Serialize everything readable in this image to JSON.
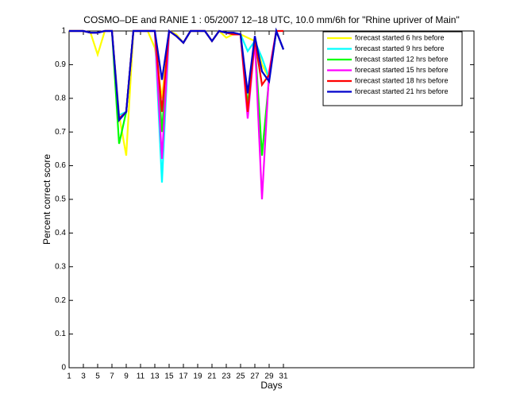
{
  "chart_data": {
    "type": "line",
    "title": "COSMO–DE and RANIE 1 : 05/2007 12–18 UTC, 10.0 mm/6h for \"Rhine upriver of Main\"",
    "xlabel": "Days",
    "ylabel": "Percent correct score",
    "x": [
      1,
      2,
      3,
      4,
      5,
      6,
      7,
      8,
      9,
      10,
      11,
      12,
      13,
      14,
      15,
      16,
      17,
      18,
      19,
      20,
      21,
      22,
      23,
      24,
      25,
      26,
      27,
      28,
      29,
      30,
      31
    ],
    "series": [
      {
        "name": "forecast started 6 hrs before",
        "color": "#ffff00",
        "values": [
          1,
          1,
          1,
          0.995,
          0.93,
          1,
          1,
          0.75,
          0.63,
          1,
          1,
          1,
          0.95,
          0.8,
          1,
          0.99,
          0.965,
          1,
          1,
          1,
          0.97,
          1,
          0.98,
          0.99,
          0.99,
          0.98,
          0.97,
          0.9,
          0.86,
          1,
          0.945
        ]
      },
      {
        "name": "forecast started 9 hrs before",
        "color": "#00ffff",
        "values": [
          1,
          1,
          1,
          0.995,
          0.995,
          1,
          1,
          0.75,
          0.76,
          1,
          1,
          1,
          1,
          0.55,
          1,
          0.985,
          0.965,
          1,
          1,
          1,
          0.97,
          1,
          0.995,
          0.99,
          0.99,
          0.94,
          0.97,
          0.92,
          0.86,
          1,
          0.945
        ]
      },
      {
        "name": "forecast started 12 hrs before",
        "color": "#00ff00",
        "values": [
          1,
          1,
          1,
          0.995,
          0.995,
          1,
          1,
          0.665,
          0.76,
          1,
          1,
          1,
          1,
          0.7,
          1,
          0.985,
          0.965,
          1,
          1,
          1,
          0.97,
          1,
          0.995,
          0.99,
          0.99,
          0.78,
          0.97,
          0.63,
          0.86,
          1,
          0.945
        ]
      },
      {
        "name": "forecast started 15 hrs before",
        "color": "#ff00ff",
        "values": [
          1,
          1,
          1,
          0.995,
          0.995,
          1,
          1,
          0.74,
          0.76,
          1,
          1,
          1,
          1,
          0.62,
          1,
          0.985,
          0.965,
          1,
          1,
          1,
          0.97,
          1,
          0.995,
          0.99,
          0.99,
          0.74,
          0.97,
          0.5,
          0.88,
          1,
          0.945
        ]
      },
      {
        "name": "forecast started 18 hrs before",
        "color": "#ff0000",
        "values": [
          1,
          1,
          1,
          0.995,
          0.995,
          1,
          1,
          0.74,
          0.76,
          1,
          1,
          1,
          1,
          0.76,
          1,
          0.985,
          0.965,
          1,
          1,
          1,
          0.97,
          1,
          0.995,
          0.99,
          0.99,
          0.76,
          0.975,
          0.84,
          0.87,
          1,
          1
        ]
      },
      {
        "name": "forecast started 21 hrs before",
        "color": "#0000cc",
        "values": [
          1,
          1,
          1,
          0.995,
          0.995,
          1,
          1,
          0.735,
          0.76,
          1,
          1,
          1,
          1,
          0.855,
          1,
          0.985,
          0.965,
          1,
          1,
          1,
          0.97,
          1,
          0.995,
          0.995,
          0.99,
          0.815,
          0.985,
          0.88,
          0.85,
          1,
          0.945
        ]
      }
    ],
    "xlim": [
      1,
      57.67
    ],
    "xticks": [
      1,
      3,
      5,
      7,
      9,
      11,
      13,
      15,
      17,
      19,
      21,
      23,
      25,
      27,
      29,
      31
    ],
    "ylim": [
      0,
      1
    ],
    "yticks": [
      0,
      0.1,
      0.2,
      0.3,
      0.4,
      0.5,
      0.6,
      0.7,
      0.8,
      0.9,
      1
    ],
    "legend": "upper right"
  }
}
